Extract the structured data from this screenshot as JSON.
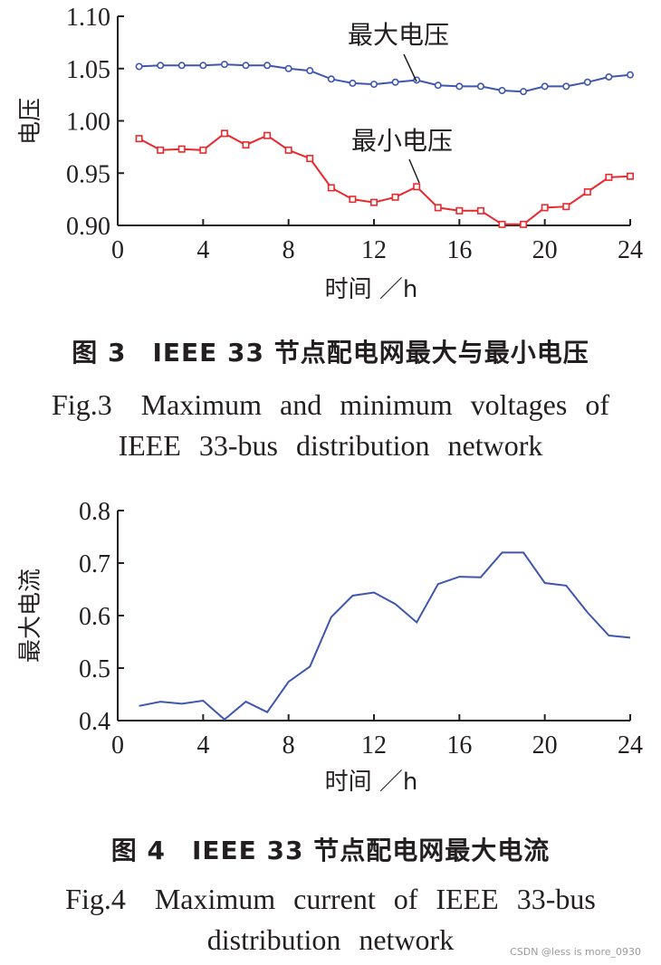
{
  "chart_data": [
    {
      "type": "line",
      "x": [
        1,
        2,
        3,
        4,
        5,
        6,
        7,
        8,
        9,
        10,
        11,
        12,
        13,
        14,
        15,
        16,
        17,
        18,
        19,
        20,
        21,
        22,
        23,
        24
      ],
      "series": [
        {
          "name": "最大电压",
          "color": "#3f56b0",
          "marker": "circle",
          "values": [
            1.052,
            1.053,
            1.053,
            1.053,
            1.054,
            1.053,
            1.053,
            1.05,
            1.048,
            1.04,
            1.036,
            1.035,
            1.037,
            1.039,
            1.034,
            1.033,
            1.033,
            1.029,
            1.028,
            1.033,
            1.033,
            1.037,
            1.042,
            1.044
          ]
        },
        {
          "name": "最小电压",
          "color": "#e8292e",
          "marker": "square",
          "values": [
            0.983,
            0.972,
            0.973,
            0.972,
            0.988,
            0.977,
            0.986,
            0.972,
            0.964,
            0.936,
            0.925,
            0.922,
            0.927,
            0.937,
            0.917,
            0.914,
            0.914,
            0.901,
            0.901,
            0.917,
            0.918,
            0.932,
            0.946,
            0.947
          ]
        }
      ],
      "xticks": [
        "0",
        "4",
        "8",
        "12",
        "16",
        "20",
        "24"
      ],
      "yticks": [
        "0.90",
        "0.95",
        "1.00",
        "1.05",
        "1.10"
      ],
      "xlim": [
        0,
        24
      ],
      "ylim": [
        0.9,
        1.1
      ],
      "xlabel": "时间 ／h",
      "ylabel": "电压",
      "annotations": [
        "最大电压",
        "最小电压"
      ],
      "caption_cn": "图 3　IEEE 33 节点配电网最大与最小电压",
      "caption_en_line1": "Fig.3　Maximum and minimum voltages of",
      "caption_en_line2": "IEEE 33-bus distribution network"
    },
    {
      "type": "line",
      "x": [
        1,
        2,
        3,
        4,
        5,
        6,
        7,
        8,
        9,
        10,
        11,
        12,
        13,
        14,
        15,
        16,
        17,
        18,
        19,
        20,
        21,
        22,
        23,
        24
      ],
      "series": [
        {
          "name": "最大电流",
          "color": "#3f56b0",
          "marker": "none",
          "values": [
            0.428,
            0.436,
            0.432,
            0.438,
            0.402,
            0.436,
            0.416,
            0.474,
            0.503,
            0.597,
            0.638,
            0.644,
            0.622,
            0.587,
            0.66,
            0.674,
            0.673,
            0.72,
            0.72,
            0.662,
            0.657,
            0.606,
            0.562,
            0.558
          ]
        }
      ],
      "xticks": [
        "0",
        "4",
        "8",
        "12",
        "16",
        "20",
        "24"
      ],
      "yticks": [
        "0.4",
        "0.5",
        "0.6",
        "0.7",
        "0.8"
      ],
      "xlim": [
        0,
        24
      ],
      "ylim": [
        0.4,
        0.8
      ],
      "xlabel": "时间 ／h",
      "ylabel": "最大电流",
      "caption_cn": "图 4　IEEE 33 节点配电网最大电流",
      "caption_en_line1": "Fig.4　Maximum current of IEEE 33-bus",
      "caption_en_line2": "distribution network"
    }
  ],
  "watermark": "CSDN @less is more_0930"
}
